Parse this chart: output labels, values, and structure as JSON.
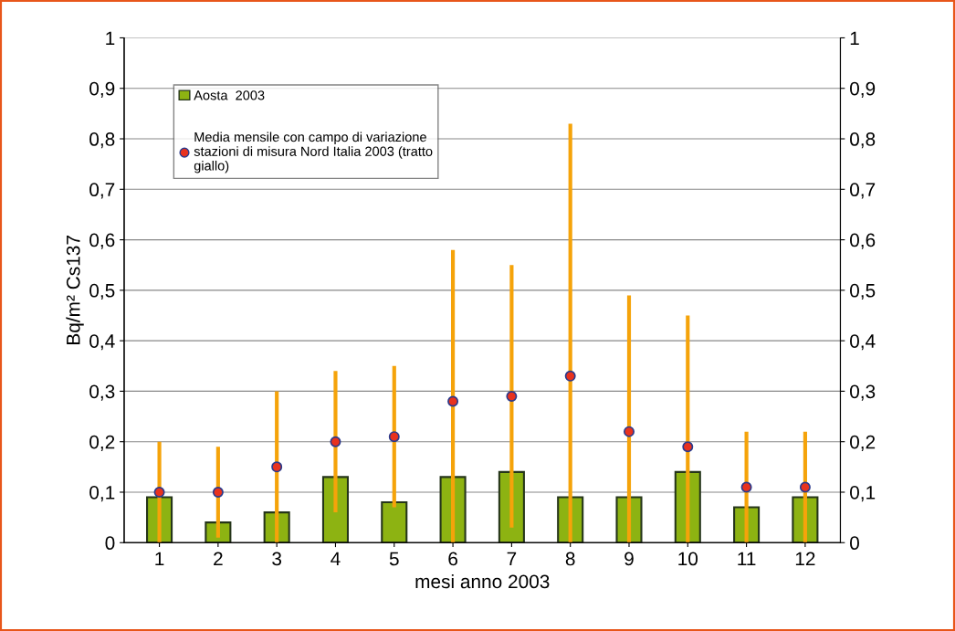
{
  "chart_data": {
    "type": "bar",
    "xlabel": "mesi anno 2003",
    "ylabel": "Bq/m² Cs137",
    "categories": [
      "1",
      "2",
      "3",
      "4",
      "5",
      "6",
      "7",
      "8",
      "9",
      "10",
      "11",
      "12"
    ],
    "series": [
      {
        "name": "Aosta  2003",
        "color": "#8db312",
        "values": [
          0.09,
          0.04,
          0.06,
          0.13,
          0.08,
          0.13,
          0.14,
          0.09,
          0.09,
          0.14,
          0.07,
          0.09
        ]
      },
      {
        "name": "Media mensile con campo di variazione stazioni di misura Nord Italia 2003 (tratto giallo)",
        "type": "scatter",
        "color": "#e8321e",
        "marker": "circle",
        "values": [
          0.1,
          0.1,
          0.15,
          0.2,
          0.21,
          0.28,
          0.29,
          0.33,
          0.22,
          0.19,
          0.11,
          0.11
        ],
        "errors": [
          [
            0,
            0.2
          ],
          [
            0.01,
            0.19
          ],
          [
            0,
            0.3
          ],
          [
            0.06,
            0.34
          ],
          [
            0.07,
            0.35
          ],
          [
            0,
            0.58
          ],
          [
            0.03,
            0.55
          ],
          [
            0,
            0.83
          ],
          [
            0,
            0.49
          ],
          [
            0,
            0.45
          ],
          [
            0,
            0.22
          ],
          [
            0,
            0.22
          ]
        ]
      }
    ],
    "ylim": [
      0,
      1
    ],
    "yticks": [
      0,
      {
        "value": 0.1,
        "label": "0,1"
      },
      {
        "value": 0.2,
        "label": "0,2"
      },
      {
        "value": 0.3,
        "label": "0,3"
      },
      {
        "value": 0.4,
        "label": "0,4"
      },
      {
        "value": 0.5,
        "label": "0,5"
      },
      {
        "value": 0.6,
        "label": "0,6"
      },
      {
        "value": 0.7,
        "label": "0,7"
      },
      {
        "value": 0.8,
        "label": "0,8"
      },
      {
        "value": 0.9,
        "label": "0,9"
      },
      1
    ],
    "y2lim": [
      0,
      1
    ],
    "y2ticks": [
      0,
      {
        "value": 0.1,
        "label": "0,1"
      },
      {
        "value": 0.2,
        "label": "0,2"
      },
      {
        "value": 0.3,
        "label": "0,3"
      },
      {
        "value": 0.4,
        "label": "0,4"
      },
      {
        "value": 0.5,
        "label": "0,5"
      },
      {
        "value": 0.6,
        "label": "0,6"
      },
      {
        "value": 0.7,
        "label": "0,7"
      },
      {
        "value": 0.8,
        "label": "0,8"
      },
      {
        "value": 0.9,
        "label": "0,9"
      },
      1
    ],
    "grid": "y",
    "legend": "top left"
  }
}
